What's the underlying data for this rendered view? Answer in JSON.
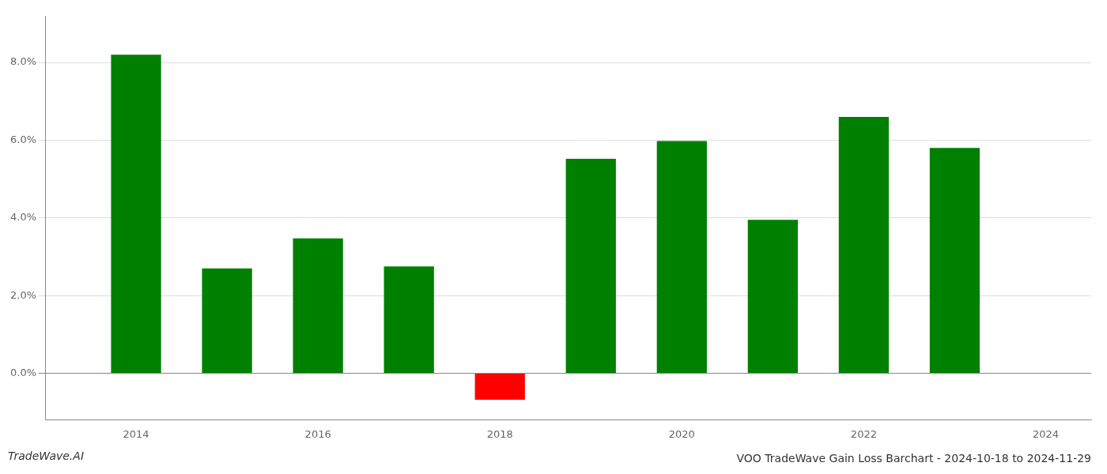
{
  "chart_data": {
    "type": "bar",
    "title": "VOO TradeWave Gain Loss Barchart - 2024-10-18 to 2024-11-29",
    "annotations": [
      "TradeWave.AI"
    ],
    "x": [
      2014,
      2015,
      2016,
      2017,
      2018,
      2019,
      2020,
      2021,
      2022,
      2023
    ],
    "values": [
      0.082,
      0.027,
      0.0347,
      0.0275,
      -0.0068,
      0.0552,
      0.0598,
      0.0395,
      0.066,
      0.058
    ],
    "colors": [
      "#008000",
      "#008000",
      "#008000",
      "#008000",
      "#ff0000",
      "#008000",
      "#008000",
      "#008000",
      "#008000",
      "#008000"
    ],
    "xlim": [
      2013.0,
      2024.5
    ],
    "xticks": [
      2014,
      2016,
      2018,
      2020,
      2022,
      2024
    ],
    "ylim": [
      -0.012,
      0.092
    ],
    "yticks": [
      {
        "value": 0,
        "label": "0.0%"
      },
      {
        "value": 0.02,
        "label": "2.0%"
      },
      {
        "value": 0.04,
        "label": "4.0%"
      },
      {
        "value": 0.06,
        "label": "6.0%"
      },
      {
        "value": 0.08,
        "label": "8.0%"
      }
    ],
    "grid": "y"
  }
}
